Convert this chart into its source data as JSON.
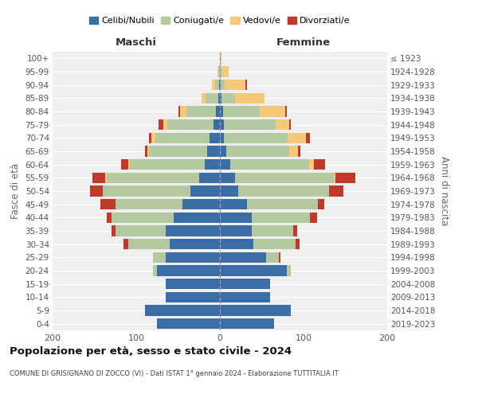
{
  "age_groups": [
    "0-4",
    "5-9",
    "10-14",
    "15-19",
    "20-24",
    "25-29",
    "30-34",
    "35-39",
    "40-44",
    "45-49",
    "50-54",
    "55-59",
    "60-64",
    "65-69",
    "70-74",
    "75-79",
    "80-84",
    "85-89",
    "90-94",
    "95-99",
    "100+"
  ],
  "birth_years": [
    "2019-2023",
    "2014-2018",
    "2009-2013",
    "2004-2008",
    "1999-2003",
    "1994-1998",
    "1989-1993",
    "1984-1988",
    "1979-1983",
    "1974-1978",
    "1969-1973",
    "1964-1968",
    "1959-1963",
    "1954-1958",
    "1949-1953",
    "1944-1948",
    "1939-1943",
    "1934-1938",
    "1929-1933",
    "1924-1928",
    "≤ 1923"
  ],
  "colors": {
    "celibi": "#3a6ea5",
    "coniugati": "#b5c9a0",
    "vedovi": "#f5c97a",
    "divorziati": "#c0392b"
  },
  "maschi": {
    "celibi": [
      75,
      90,
      65,
      65,
      75,
      65,
      60,
      65,
      55,
      45,
      35,
      25,
      18,
      15,
      12,
      8,
      5,
      2,
      1,
      0,
      0
    ],
    "coniugati": [
      0,
      0,
      0,
      0,
      5,
      15,
      50,
      60,
      75,
      80,
      105,
      110,
      90,
      70,
      65,
      55,
      35,
      15,
      5,
      2,
      0
    ],
    "vedovi": [
      0,
      0,
      0,
      0,
      0,
      0,
      0,
      0,
      0,
      0,
      0,
      2,
      2,
      2,
      5,
      5,
      8,
      5,
      4,
      1,
      0
    ],
    "divorziati": [
      0,
      0,
      0,
      0,
      0,
      0,
      5,
      5,
      5,
      18,
      15,
      15,
      8,
      3,
      3,
      5,
      2,
      0,
      0,
      0,
      0
    ]
  },
  "femmine": {
    "celibi": [
      65,
      85,
      60,
      60,
      80,
      55,
      40,
      38,
      38,
      32,
      22,
      18,
      12,
      8,
      5,
      5,
      4,
      2,
      1,
      0,
      0
    ],
    "coniugati": [
      0,
      0,
      0,
      0,
      5,
      15,
      50,
      50,
      70,
      85,
      108,
      118,
      95,
      75,
      76,
      62,
      44,
      16,
      5,
      2,
      0
    ],
    "vedovi": [
      0,
      0,
      0,
      0,
      0,
      0,
      0,
      0,
      0,
      0,
      0,
      2,
      5,
      10,
      22,
      16,
      30,
      35,
      24,
      8,
      2
    ],
    "divorziati": [
      0,
      0,
      0,
      0,
      0,
      2,
      5,
      4,
      8,
      8,
      18,
      24,
      14,
      3,
      5,
      2,
      2,
      0,
      2,
      0,
      0
    ]
  },
  "title": "Popolazione per età, sesso e stato civile - 2024",
  "subtitle": "COMUNE DI GRISIGNANO DI ZOCCO (VI) - Dati ISTAT 1° gennaio 2024 - Elaborazione TUTTITALIA.IT",
  "xlabel_left": "Maschi",
  "xlabel_right": "Femmine",
  "ylabel_left": "Fasce di età",
  "ylabel_right": "Anni di nascita",
  "xlim": 200,
  "legend_labels": [
    "Celibi/Nubili",
    "Coniugati/e",
    "Vedovi/e",
    "Divorziati/e"
  ],
  "background_color": "#ffffff",
  "plot_bg": "#efefef",
  "grid_color": "#ffffff"
}
